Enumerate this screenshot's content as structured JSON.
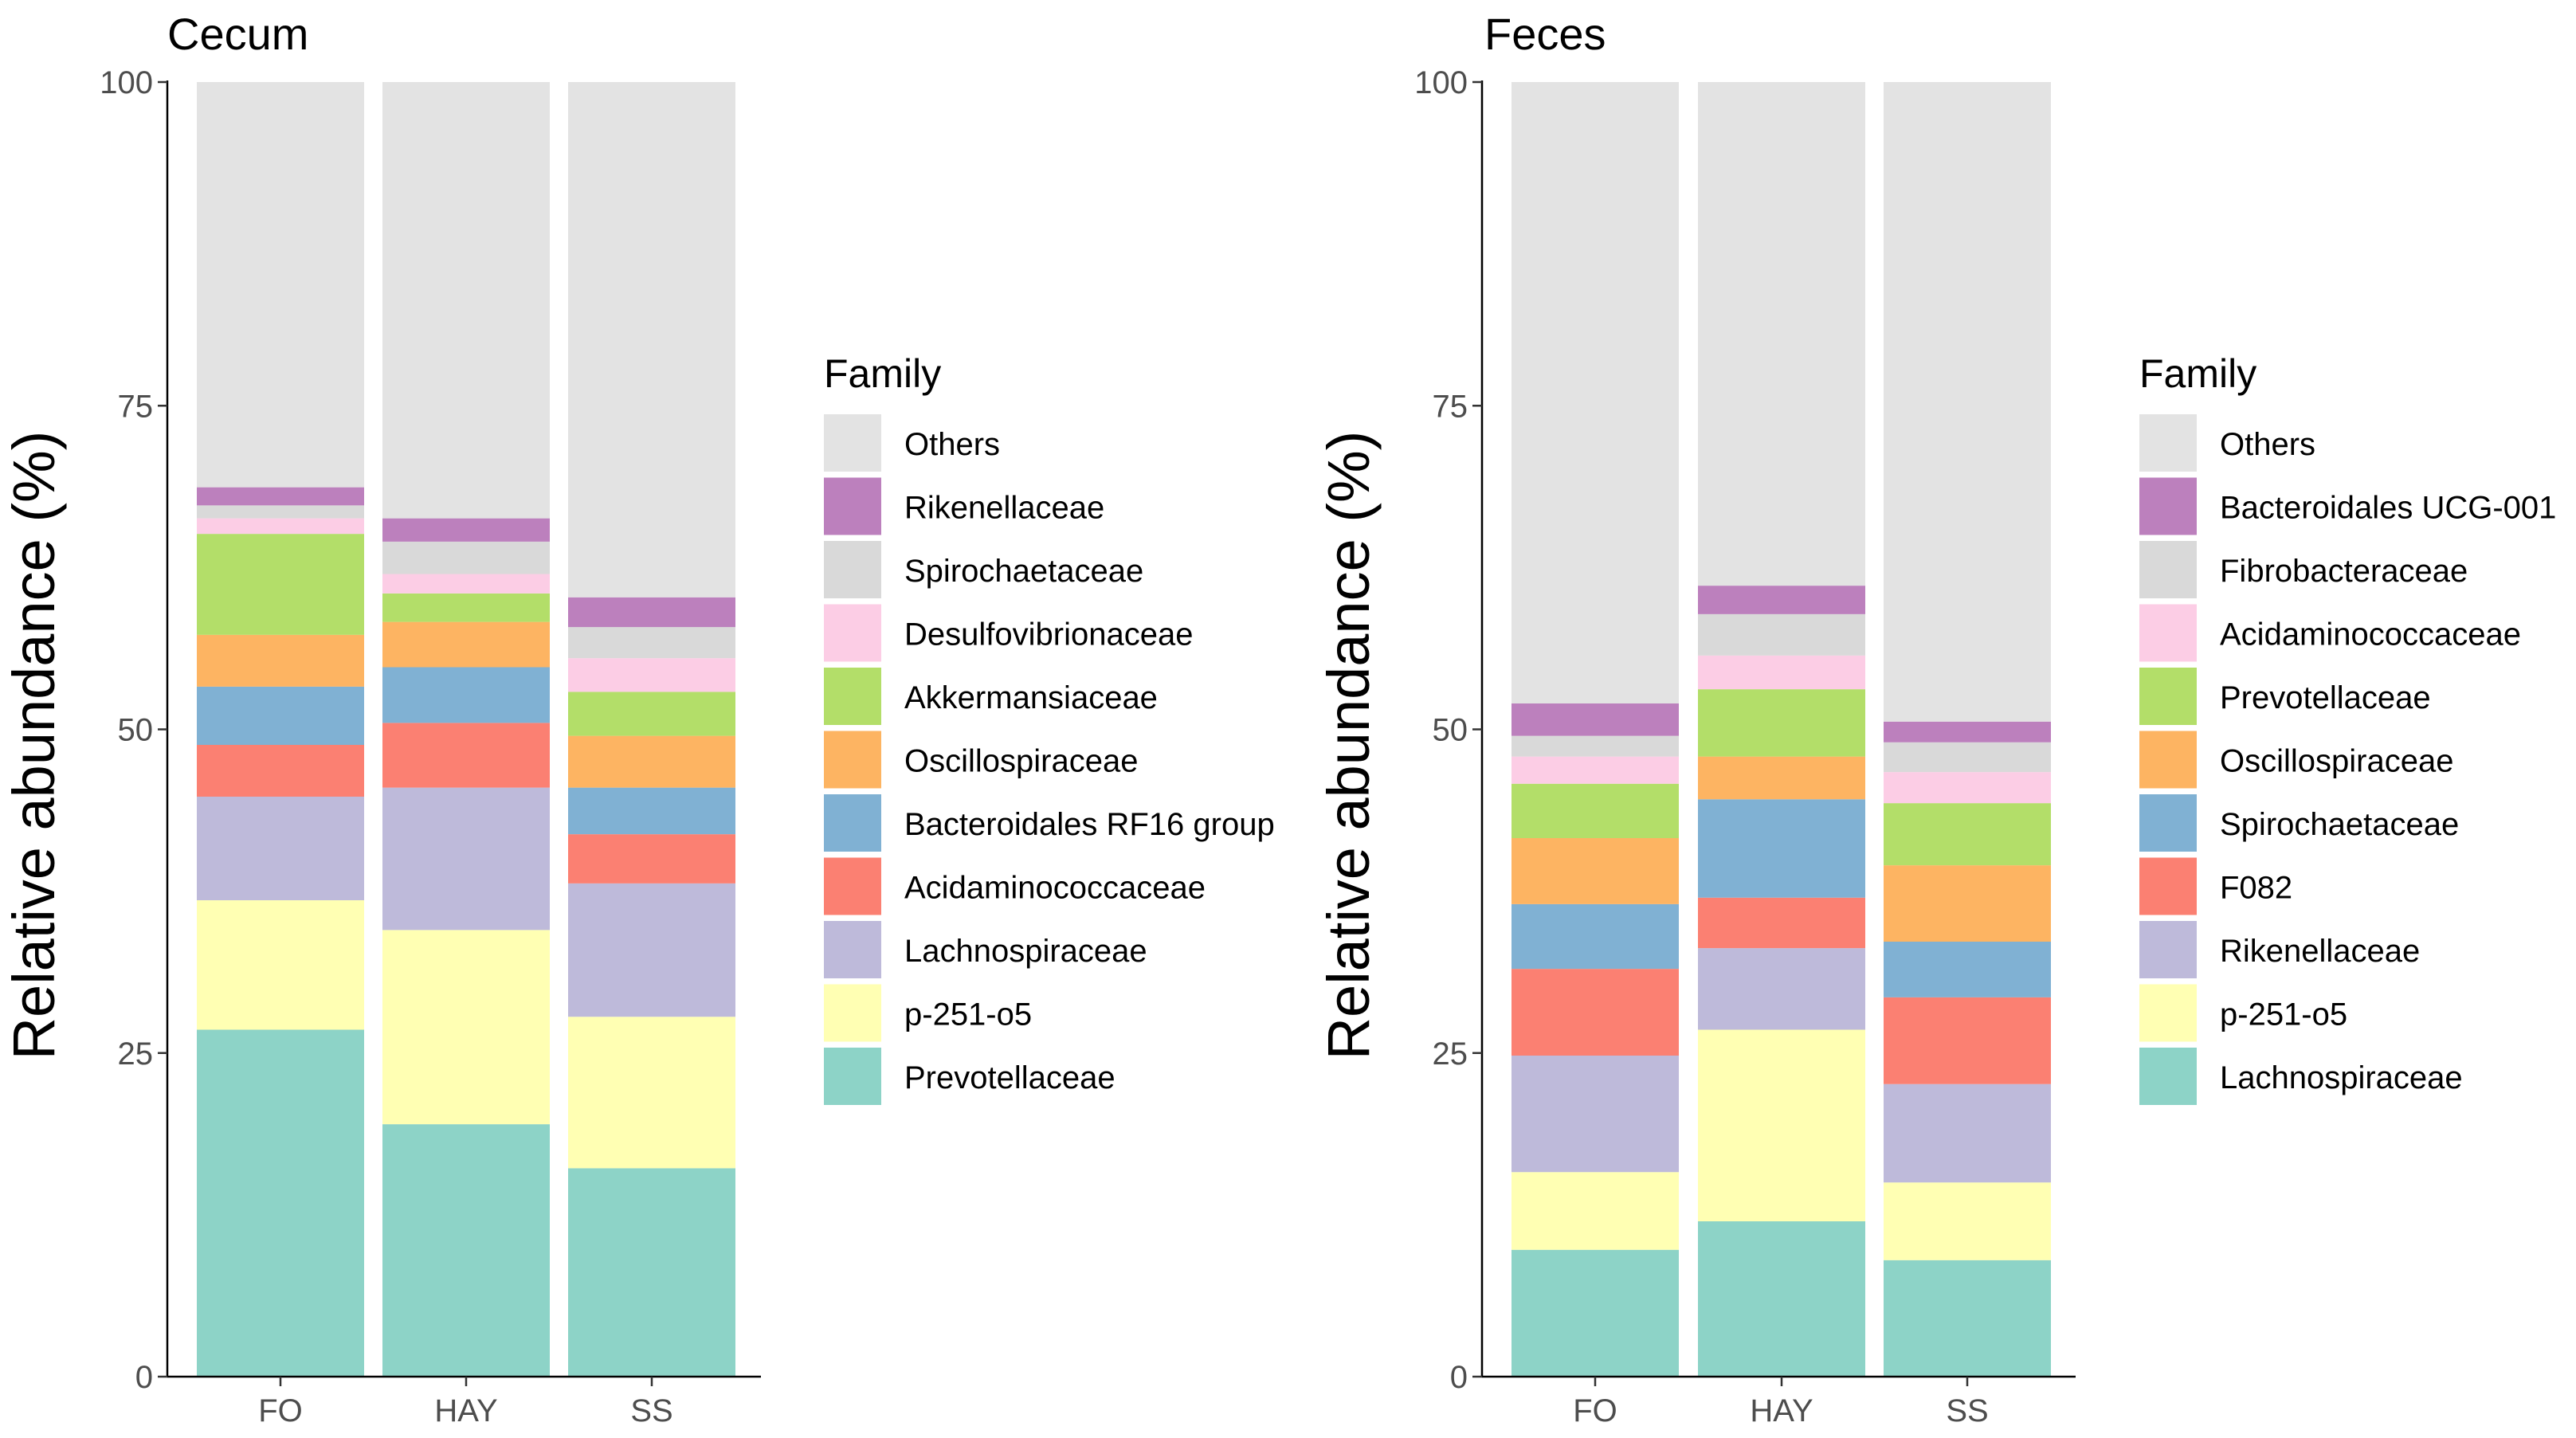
{
  "chart_data": [
    {
      "type": "bar",
      "stacked": true,
      "title": "Cecum",
      "xlabel": "",
      "ylabel": "Relative abundance (%)",
      "ylim": [
        0,
        100
      ],
      "yticks": [
        "0",
        "25",
        "50",
        "75",
        "100"
      ],
      "categories": [
        "FO",
        "HAY",
        "SS"
      ],
      "legend_title": "Family",
      "legend_position": "right",
      "series": [
        {
          "name": "Prevotellaceae",
          "color": "#8DD3C7",
          "values": [
            26.8,
            19.5,
            16.1
          ]
        },
        {
          "name": "p-251-o5",
          "color": "#FFFFB3",
          "values": [
            10.0,
            15.0,
            11.7
          ]
        },
        {
          "name": "Lachnospiraceae",
          "color": "#BEBADA",
          "values": [
            8.0,
            11.0,
            10.3
          ]
        },
        {
          "name": "Acidaminococcaceae",
          "color": "#FB8072",
          "values": [
            4.0,
            5.0,
            3.8
          ]
        },
        {
          "name": "Bacteroidales RF16 group",
          "color": "#80B1D3",
          "values": [
            4.5,
            4.3,
            3.6
          ]
        },
        {
          "name": "Oscillospiraceae",
          "color": "#FDB462",
          "values": [
            4.0,
            3.5,
            4.0
          ]
        },
        {
          "name": "Akkermansiaceae",
          "color": "#B3DE69",
          "values": [
            7.8,
            2.2,
            3.4
          ]
        },
        {
          "name": "Desulfovibrionaceae",
          "color": "#FCCDE5",
          "values": [
            1.2,
            1.5,
            2.6
          ]
        },
        {
          "name": "Spirochaetaceae",
          "color": "#D9D9D9",
          "values": [
            1.0,
            2.5,
            2.4
          ]
        },
        {
          "name": "Rikenellaceae",
          "color": "#BC80BD",
          "values": [
            1.4,
            1.8,
            2.3
          ]
        },
        {
          "name": "Others",
          "color": "#E3E3E3",
          "values": [
            31.3,
            33.7,
            39.8
          ]
        }
      ]
    },
    {
      "type": "bar",
      "stacked": true,
      "title": "Feces",
      "xlabel": "",
      "ylabel": "Relative abundance (%)",
      "ylim": [
        0,
        100
      ],
      "yticks": [
        "0",
        "25",
        "50",
        "75",
        "100"
      ],
      "categories": [
        "FO",
        "HAY",
        "SS"
      ],
      "legend_title": "Family",
      "legend_position": "right",
      "series": [
        {
          "name": "Lachnospiraceae",
          "color": "#8DD3C7",
          "values": [
            9.8,
            12.0,
            9.0
          ]
        },
        {
          "name": "p-251-o5",
          "color": "#FFFFB3",
          "values": [
            6.0,
            14.8,
            6.0
          ]
        },
        {
          "name": "Rikenellaceae",
          "color": "#BEBADA",
          "values": [
            9.0,
            6.3,
            7.6
          ]
        },
        {
          "name": "F082",
          "color": "#FB8072",
          "values": [
            6.7,
            3.9,
            6.7
          ]
        },
        {
          "name": "Spirochaetaceae",
          "color": "#80B1D3",
          "values": [
            5.0,
            7.6,
            4.3
          ]
        },
        {
          "name": "Oscillospiraceae",
          "color": "#FDB462",
          "values": [
            5.1,
            3.3,
            5.9
          ]
        },
        {
          "name": "Prevotellaceae",
          "color": "#B3DE69",
          "values": [
            4.2,
            5.2,
            4.8
          ]
        },
        {
          "name": "Acidaminococcaceae",
          "color": "#FCCDE5",
          "values": [
            2.1,
            2.6,
            2.4
          ]
        },
        {
          "name": "Fibrobacteraceae",
          "color": "#D9D9D9",
          "values": [
            1.6,
            3.2,
            2.3
          ]
        },
        {
          "name": "Bacteroidales UCG-001",
          "color": "#BC80BD",
          "values": [
            2.5,
            2.2,
            1.6
          ]
        },
        {
          "name": "Others",
          "color": "#E3E3E3",
          "values": [
            48.0,
            38.9,
            49.4
          ]
        }
      ]
    }
  ]
}
